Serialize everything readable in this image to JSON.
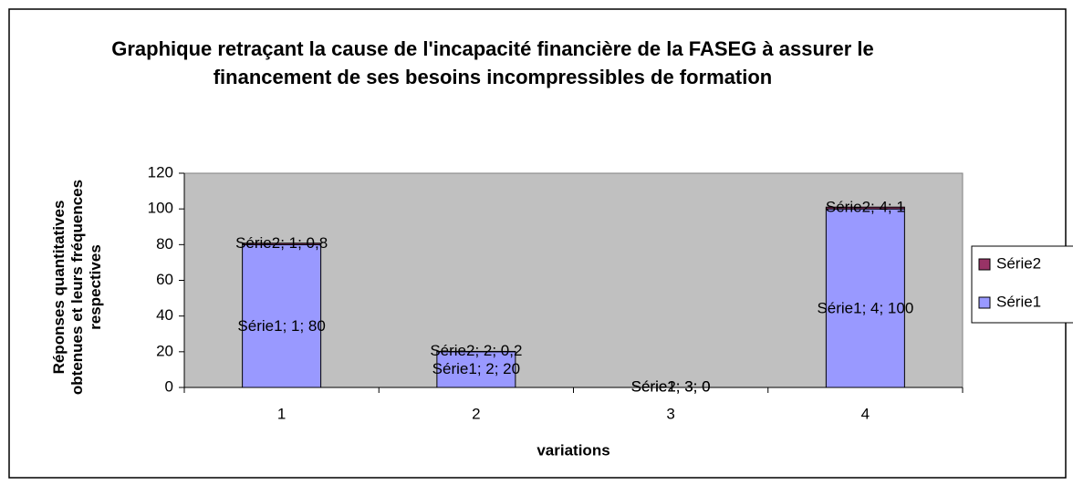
{
  "chart_data": {
    "type": "bar",
    "stacked": true,
    "title": "Graphique retraçant la cause de l'incapacité financière de la FASEG à assurer le financement de ses besoins incompressibles de formation",
    "x_label": "variations",
    "y_label": "Réponses quantitatives obtenues et leurs fréquences respectives",
    "categories": [
      "1",
      "2",
      "3",
      "4"
    ],
    "series": [
      {
        "name": "Série1",
        "color": "#9999ff",
        "values": [
          80,
          20,
          0,
          100
        ],
        "value_labels": [
          "Série1; 1; 80",
          "Série1; 2; 20",
          "Série1; 3; 0",
          "Série1; 4; 100"
        ]
      },
      {
        "name": "Série2",
        "color": "#993366",
        "values": [
          0.8,
          0.2,
          0,
          1
        ],
        "value_labels": [
          "Série2; 1; 0,8",
          "Série2; 2; 0,2",
          "Série2; 3; 0",
          "Série2; 4; 1"
        ]
      }
    ],
    "ylim": [
      0,
      120
    ],
    "yticks": [
      0,
      20,
      40,
      60,
      80,
      100,
      120
    ],
    "grid": false,
    "plot_background": "#c0c0c0",
    "legend": "right"
  }
}
